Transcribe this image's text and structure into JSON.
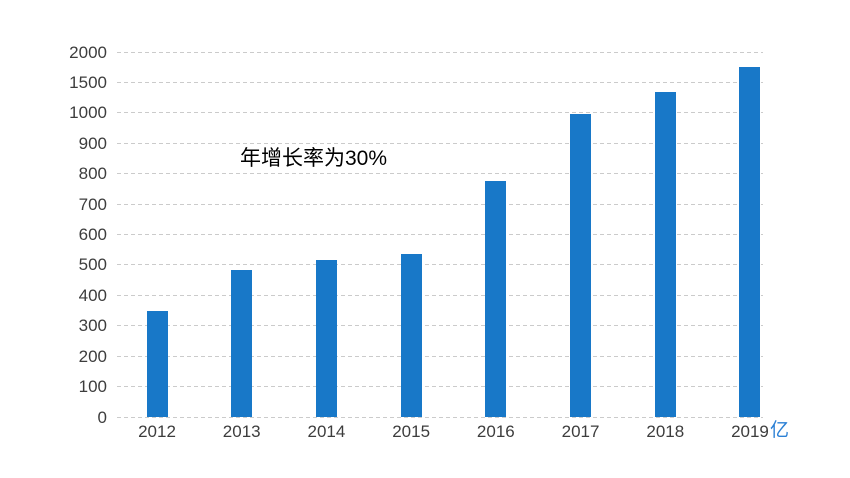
{
  "chart_data": {
    "type": "bar",
    "title": "",
    "categories": [
      "2012",
      "2013",
      "2014",
      "2015",
      "2016",
      "2017",
      "2018",
      "2019"
    ],
    "values": [
      350,
      485,
      515,
      535,
      775,
      995,
      1340,
      1750
    ],
    "unit_label": "亿",
    "annotation": "年增长率为30%",
    "ytick_labels": [
      "0",
      "100",
      "200",
      "300",
      "400",
      "500",
      "600",
      "700",
      "800",
      "900",
      "1000",
      "1500",
      "2000"
    ],
    "ytick_values": [
      0,
      100,
      200,
      300,
      400,
      500,
      600,
      700,
      800,
      900,
      1000,
      1500,
      2000
    ],
    "axis_scale_note": "y axis non-linear: equal spacing per tick; 100 per step up to 1000, then 500 per step to 2000",
    "ylim": [
      0,
      2000
    ],
    "grid": "dashed horizontal gridlines",
    "legend": "none",
    "colors": {
      "bar": "#1878c8",
      "gridline": "#cbcbcb",
      "tick_label": "#3d3d3d",
      "unit_label": "#2b80d5",
      "annotation": "#000000",
      "background": "#ffffff"
    }
  }
}
